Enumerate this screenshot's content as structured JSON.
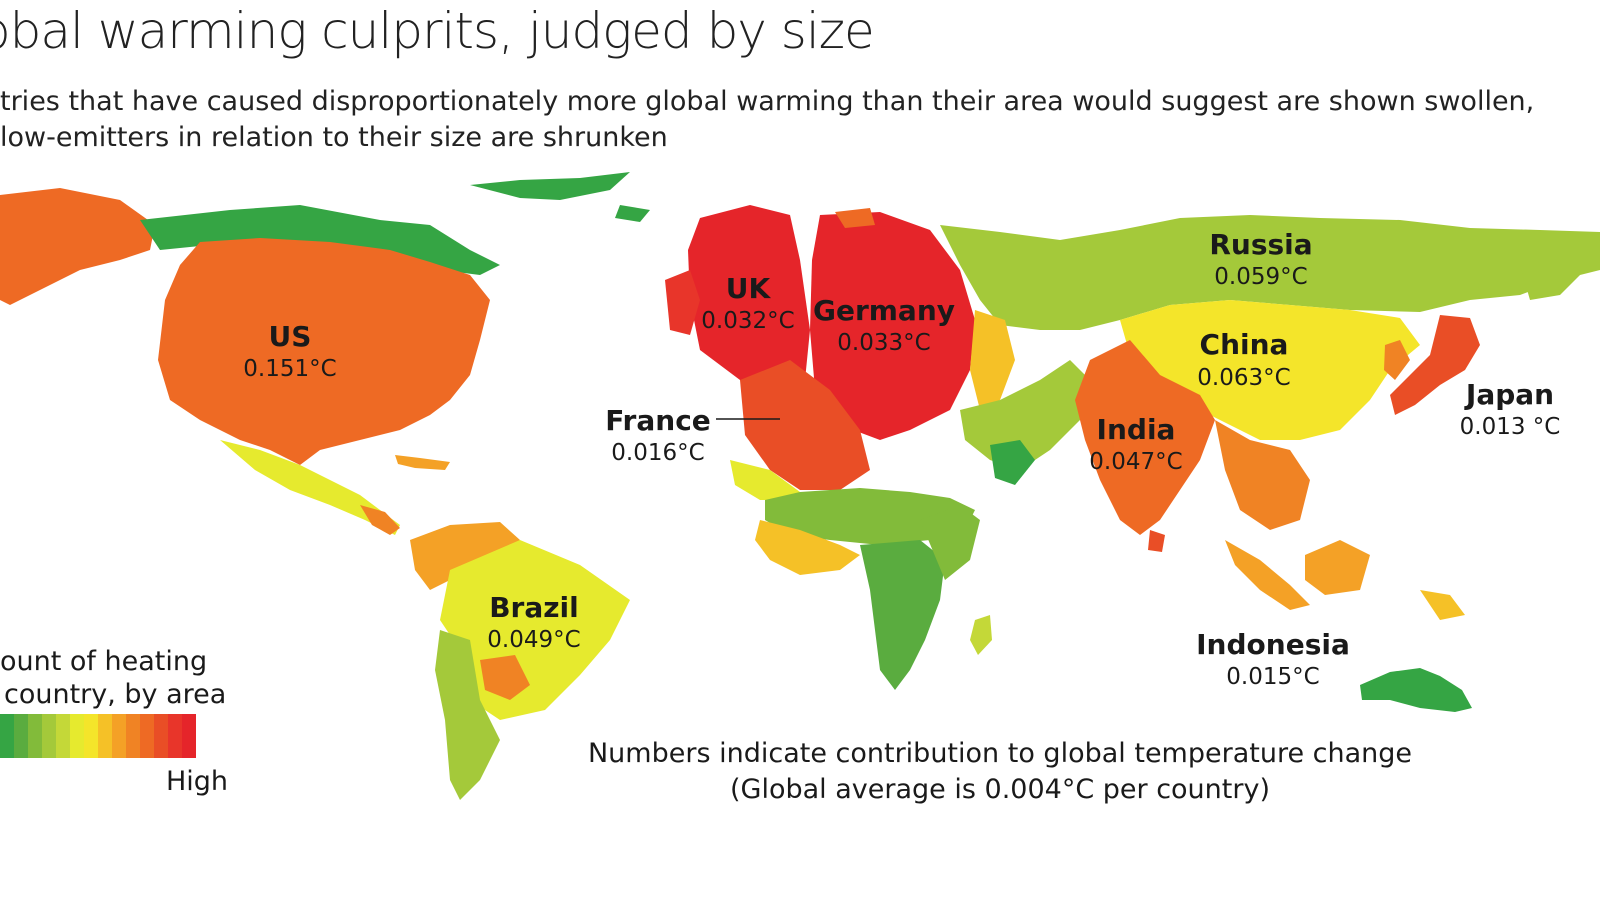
{
  "header": {
    "title": "obal warming culprits, judged by size",
    "subtitle_line1": "tries that have caused disproportionately more global warming than their area would suggest are shown swollen,",
    "subtitle_line2": "low-emitters in relation to their size are shrunken"
  },
  "colors": {
    "scale": [
      "#35a544",
      "#5aac3f",
      "#82bb3a",
      "#a4c93a",
      "#c4d838",
      "#e6ea2e",
      "#f4e52a",
      "#f5c127",
      "#f4a126",
      "#f08324",
      "#ee6a24",
      "#e94e26",
      "#e8352a",
      "#e5252a"
    ]
  },
  "countries": [
    {
      "name": "US",
      "value": "0.151°C",
      "color": "#ee6a24"
    },
    {
      "name": "UK",
      "value": "0.032°C",
      "color": "#e5252a"
    },
    {
      "name": "Germany",
      "value": "0.033°C",
      "color": "#e5252a"
    },
    {
      "name": "France",
      "value": "0.016°C",
      "color": "#e94e26"
    },
    {
      "name": "Russia",
      "value": "0.059°C",
      "color": "#a4c93a"
    },
    {
      "name": "China",
      "value": "0.063°C",
      "color": "#f4e52a"
    },
    {
      "name": "India",
      "value": "0.047°C",
      "color": "#ee6a24"
    },
    {
      "name": "Japan",
      "value": "0.013 °C",
      "color": "#e94e26"
    },
    {
      "name": "Brazil",
      "value": "0.049°C",
      "color": "#e6ea2e"
    },
    {
      "name": "Indonesia",
      "value": "0.015°C",
      "color": "#f4a126"
    }
  ],
  "legend": {
    "title_line1": "ount of heating",
    "title_line2": "country, by area",
    "high_label": "High"
  },
  "note": {
    "line1": "Numbers indicate contribution to global temperature change",
    "line2": "(Global average is 0.004°C per country)"
  }
}
